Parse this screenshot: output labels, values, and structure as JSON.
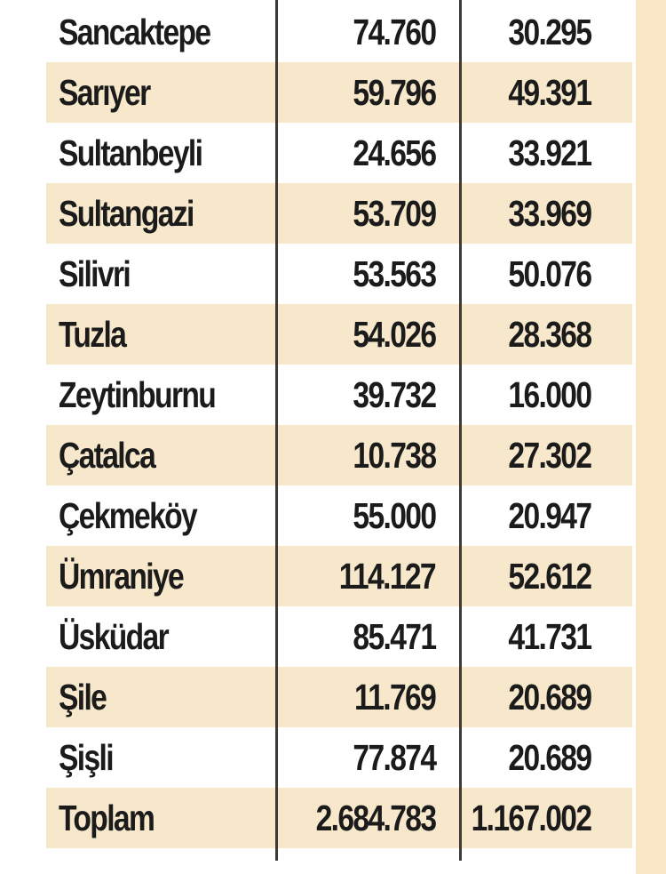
{
  "table": {
    "rows": [
      {
        "name": "Sancaktepe",
        "v1": "74.760",
        "v2": "30.295"
      },
      {
        "name": "Sarıyer",
        "v1": "59.796",
        "v2": "49.391"
      },
      {
        "name": "Sultanbeyli",
        "v1": "24.656",
        "v2": "33.921"
      },
      {
        "name": "Sultangazi",
        "v1": "53.709",
        "v2": "33.969"
      },
      {
        "name": "Silivri",
        "v1": "53.563",
        "v2": "50.076"
      },
      {
        "name": "Tuzla",
        "v1": "54.026",
        "v2": "28.368"
      },
      {
        "name": "Zeytinburnu",
        "v1": "39.732",
        "v2": "16.000"
      },
      {
        "name": "Çatalca",
        "v1": "10.738",
        "v2": "27.302"
      },
      {
        "name": "Çekmeköy",
        "v1": "55.000",
        "v2": "20.947"
      },
      {
        "name": "Ümraniye",
        "v1": "114.127",
        "v2": "52.612"
      },
      {
        "name": "Üsküdar",
        "v1": "85.471",
        "v2": "41.731"
      },
      {
        "name": "Şile",
        "v1": "11.769",
        "v2": "20.689"
      },
      {
        "name": "Şişli",
        "v1": "77.874",
        "v2": "20.689"
      },
      {
        "name": "Toplam",
        "v1": "2.684.783",
        "v2": "1.167.002"
      }
    ]
  },
  "colors": {
    "row_beige": "#f8e8cb",
    "row_white": "#ffffff",
    "text": "#1b1b1b",
    "divider": "#3f3a35"
  }
}
